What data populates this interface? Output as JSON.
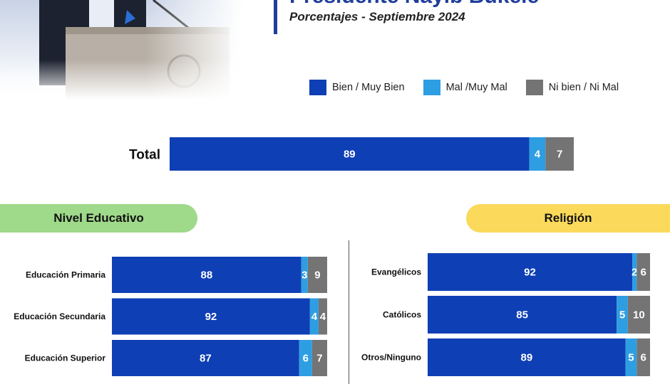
{
  "header": {
    "title": "Presidente Nayib Bukele",
    "subtitle": "Porcentajes - Septiembre 2024"
  },
  "sections": {
    "education_label": "Nivel Educativo",
    "religion_label": "Religión"
  },
  "colors": {
    "bien": "#0e3fb5",
    "mal": "#2e9ee3",
    "ni": "#747474"
  },
  "chart_data": {
    "type": "bar",
    "stacked": true,
    "orientation": "horizontal",
    "xlim": [
      0,
      100
    ],
    "legend_position": "top-right",
    "legend": [
      "Bien / Muy Bien",
      "Mal /Muy Mal",
      "Ni bien / Ni Mal"
    ],
    "total": {
      "label": "Total",
      "values": [
        89,
        4,
        7
      ]
    },
    "education": [
      {
        "label": "Educación Primaria",
        "values": [
          88,
          3,
          9
        ]
      },
      {
        "label": "Educación Secundaria",
        "values": [
          92,
          4,
          4
        ]
      },
      {
        "label": "Educación Superior",
        "values": [
          87,
          6,
          7
        ]
      }
    ],
    "religion": [
      {
        "label": "Evangélicos",
        "values": [
          92,
          2,
          6
        ]
      },
      {
        "label": "Católicos",
        "values": [
          85,
          5,
          10
        ]
      },
      {
        "label": "Otros/Ninguno",
        "values": [
          89,
          5,
          6
        ]
      }
    ]
  }
}
